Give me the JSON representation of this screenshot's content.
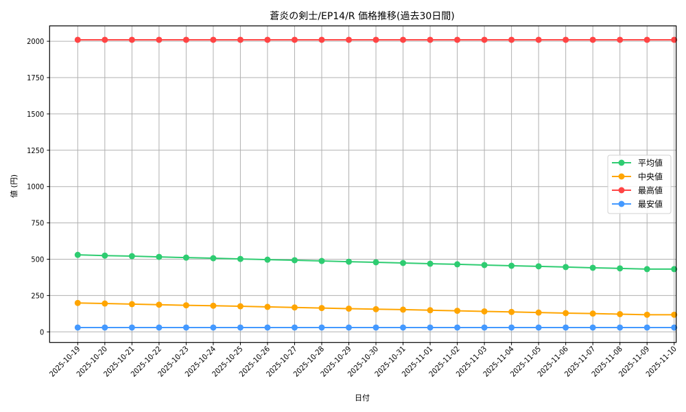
{
  "chart_data": {
    "type": "line",
    "title": "蒼炎の剣士/EP14/R 価格推移(過去30日間)",
    "xlabel": "日付",
    "ylabel": "値 (円)",
    "ylim": [
      -65,
      2110
    ],
    "yticks": [
      0,
      250,
      500,
      750,
      1000,
      1250,
      1500,
      1750,
      2000
    ],
    "grid": true,
    "legend_position": "center right",
    "categories": [
      "2025-10-19",
      "2025-10-20",
      "2025-10-21",
      "2025-10-22",
      "2025-10-23",
      "2025-10-24",
      "2025-10-25",
      "2025-10-26",
      "2025-10-27",
      "2025-10-28",
      "2025-10-29",
      "2025-10-30",
      "2025-10-31",
      "2025-11-01",
      "2025-11-02",
      "2025-11-03",
      "2025-11-04",
      "2025-11-05",
      "2025-11-06",
      "2025-11-07",
      "2025-11-08",
      "2025-11-09",
      "2025-11-10"
    ],
    "series": [
      {
        "name": "平均値",
        "color": "#2ecc71",
        "values": [
          530,
          525,
          521,
          516,
          511,
          507,
          502,
          497,
          493,
          488,
          483,
          479,
          474,
          469,
          465,
          460,
          455,
          451,
          446,
          441,
          437,
          432,
          432
        ]
      },
      {
        "name": " 中央値",
        "color": "#ffa500",
        "values": [
          199,
          195,
          191,
          187,
          183,
          180,
          176,
          172,
          168,
          164,
          160,
          156,
          153,
          149,
          145,
          141,
          137,
          133,
          129,
          126,
          122,
          118,
          118
        ]
      },
      {
        "name": "最高値",
        "color": "#ff4444",
        "values": [
          2010,
          2010,
          2010,
          2010,
          2010,
          2010,
          2010,
          2010,
          2010,
          2010,
          2010,
          2010,
          2010,
          2010,
          2010,
          2010,
          2010,
          2010,
          2010,
          2010,
          2010,
          2010,
          2010
        ]
      },
      {
        "name": "最安値",
        "color": "#4499ff",
        "values": [
          30,
          30,
          30,
          30,
          30,
          30,
          30,
          30,
          30,
          30,
          30,
          30,
          30,
          30,
          30,
          30,
          30,
          30,
          30,
          30,
          30,
          30,
          30
        ]
      }
    ]
  }
}
